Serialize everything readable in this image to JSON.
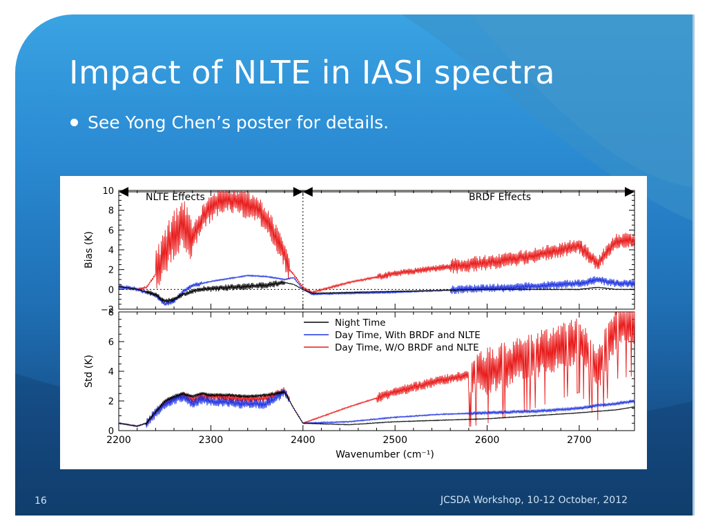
{
  "slide": {
    "title": "Impact of NLTE in IASI spectra",
    "bullet": "See Yong Chen’s poster for details.",
    "page_number": "16",
    "footer": "JCSDA Workshop, 10-12 October, 2012"
  },
  "chart_data": [
    {
      "type": "line",
      "panel": "top",
      "ylabel": "Bias (K)",
      "xlim": [
        2200,
        2760
      ],
      "ylim": [
        -2,
        10
      ],
      "yticks": [
        "10",
        "8",
        "6",
        "4",
        "2",
        "0",
        "−2"
      ],
      "annotations": {
        "nlte": "NLTE Effects",
        "brdf": "BRDF Effects",
        "divider_x": 2400
      },
      "grid": false,
      "series": [
        {
          "key": "night",
          "color": "#000000",
          "x": [
            2200,
            2220,
            2240,
            2250,
            2260,
            2270,
            2280,
            2290,
            2300,
            2320,
            2340,
            2360,
            2380,
            2390,
            2400,
            2410,
            2450,
            2500,
            2550,
            2600,
            2650,
            2700,
            2720,
            2740,
            2760
          ],
          "y": [
            0.3,
            0,
            -0.5,
            -1.2,
            -1.0,
            -0.5,
            -0.2,
            0,
            0.1,
            0.2,
            0.3,
            0.4,
            0.7,
            0.5,
            0,
            -0.4,
            -0.3,
            -0.2,
            -0.1,
            0,
            0,
            0,
            0.2,
            0,
            0
          ]
        },
        {
          "key": "day_brdf",
          "color": "#1d32e0",
          "x": [
            2200,
            2220,
            2240,
            2250,
            2260,
            2270,
            2280,
            2290,
            2300,
            2320,
            2340,
            2360,
            2380,
            2390,
            2400,
            2410,
            2450,
            2500,
            2550,
            2600,
            2650,
            2700,
            2720,
            2740,
            2760
          ],
          "y": [
            0.3,
            0,
            -0.6,
            -1.5,
            -1.2,
            -0.2,
            0.4,
            0.6,
            0.8,
            1.1,
            1.4,
            1.3,
            1.0,
            1.2,
            0,
            -0.5,
            -0.4,
            -0.3,
            -0.1,
            0.1,
            0.3,
            0.6,
            1.0,
            0.6,
            0.6
          ]
        },
        {
          "key": "day_nobrdf",
          "color": "#e81818",
          "x": [
            2200,
            2220,
            2230,
            2240,
            2250,
            2260,
            2270,
            2280,
            2290,
            2300,
            2310,
            2320,
            2330,
            2340,
            2350,
            2360,
            2370,
            2380,
            2385,
            2390,
            2400,
            2410,
            2450,
            2500,
            2550,
            2600,
            2650,
            2700,
            2720,
            2740,
            2760
          ],
          "y": [
            0.3,
            0,
            0.2,
            1.5,
            3.5,
            5.5,
            6.8,
            5.0,
            7.0,
            8.2,
            9.0,
            9.2,
            8.8,
            8.5,
            8.0,
            7.2,
            5.5,
            3.5,
            2.0,
            1.5,
            0.2,
            -0.3,
            0.7,
            1.6,
            2.2,
            2.7,
            3.4,
            4.4,
            2.6,
            4.9,
            5.0
          ]
        }
      ]
    },
    {
      "type": "line",
      "panel": "bottom",
      "ylabel": "Std (K)",
      "xlabel": "Wavenumber (cm⁻¹)",
      "xlim": [
        2200,
        2760
      ],
      "ylim": [
        0,
        8
      ],
      "xticks": [
        "2200",
        "2300",
        "2400",
        "2500",
        "2600",
        "2700"
      ],
      "yticks": [
        "8",
        "6",
        "4",
        "2",
        "0"
      ],
      "grid": false,
      "legend_position": "top-right",
      "series": [
        {
          "name": "Night Time",
          "key": "night",
          "color": "#000000",
          "x": [
            2200,
            2220,
            2230,
            2240,
            2250,
            2260,
            2270,
            2280,
            2290,
            2300,
            2320,
            2340,
            2360,
            2380,
            2390,
            2400,
            2450,
            2500,
            2550,
            2600,
            2650,
            2700,
            2720,
            2740,
            2760
          ],
          "y": [
            0.5,
            0.3,
            0.5,
            1.3,
            2.0,
            2.3,
            2.5,
            2.3,
            2.5,
            2.4,
            2.4,
            2.3,
            2.4,
            2.6,
            1.5,
            0.5,
            0.4,
            0.6,
            0.7,
            0.8,
            1.0,
            1.2,
            1.3,
            1.4,
            1.6
          ]
        },
        {
          "name": "Day Time, With BRDF and NLTE",
          "key": "day_brdf",
          "color": "#1d32e0",
          "x": [
            2200,
            2220,
            2230,
            2240,
            2250,
            2260,
            2270,
            2280,
            2290,
            2300,
            2320,
            2340,
            2360,
            2380,
            2390,
            2400,
            2450,
            2500,
            2550,
            2600,
            2650,
            2700,
            2720,
            2740,
            2760
          ],
          "y": [
            0.5,
            0.3,
            0.5,
            1.2,
            1.8,
            2.1,
            2.3,
            1.8,
            2.1,
            2.0,
            1.9,
            1.8,
            1.8,
            2.6,
            1.5,
            0.5,
            0.6,
            0.9,
            1.1,
            1.2,
            1.3,
            1.5,
            1.7,
            1.8,
            2.0
          ]
        },
        {
          "name": "Day Time, W/O BRDF and NLTE",
          "key": "day_nobrdf",
          "color": "#e81818",
          "x": [
            2200,
            2220,
            2230,
            2240,
            2250,
            2260,
            2270,
            2280,
            2290,
            2300,
            2320,
            2340,
            2360,
            2380,
            2390,
            2400,
            2450,
            2500,
            2550,
            2600,
            2650,
            2700,
            2720,
            2740,
            2760
          ],
          "y": [
            0.5,
            0.3,
            0.5,
            1.2,
            1.9,
            2.2,
            2.4,
            2.1,
            2.3,
            2.3,
            2.2,
            2.1,
            2.2,
            2.7,
            1.5,
            0.5,
            1.6,
            2.6,
            3.4,
            4.0,
            5.0,
            6.1,
            4.2,
            7.0,
            7.2
          ]
        }
      ]
    }
  ]
}
